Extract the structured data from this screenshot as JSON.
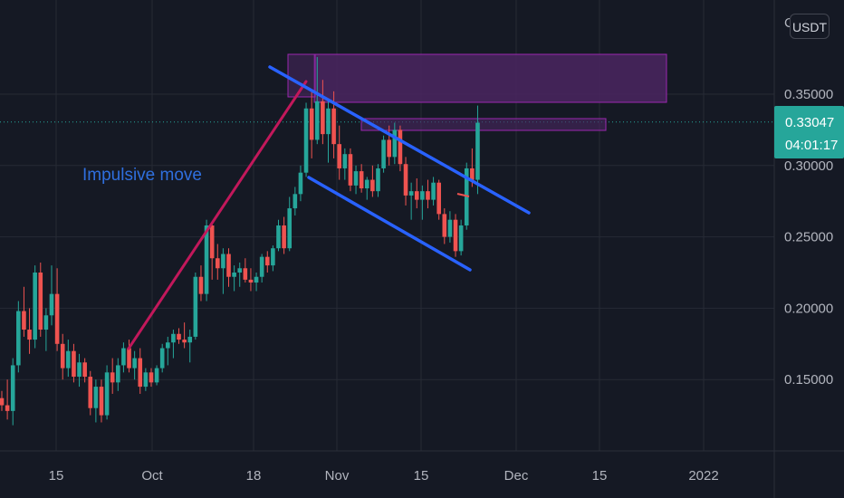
{
  "instrument": {
    "currency_button": "USDT",
    "top_cut_label": "C"
  },
  "chart_data": {
    "type": "candlestick",
    "title": "",
    "price_axis": {
      "ylim": [
        0.1,
        0.38
      ],
      "ticks": [
        "0.35000",
        "0.30000",
        "0.25000",
        "0.20000",
        "0.15000"
      ]
    },
    "time_axis": {
      "tick_labels": [
        "15",
        "Oct",
        "18",
        "Nov",
        "15",
        "Dec",
        "15",
        "2022"
      ]
    },
    "current_price": {
      "value": "0.33047",
      "countdown": "04:01:17",
      "level": 0.33047
    },
    "annotations": [
      {
        "text": "Impulsive move"
      }
    ],
    "colors": {
      "up": "#26a69a",
      "down": "#ef5350",
      "background": "#151924",
      "trendline": "#2962ff",
      "impulse": "#c2185b",
      "zone_fill": "#4a2660",
      "zone_border": "#9c27b0"
    },
    "candles": [
      [
        0.137,
        0.142,
        0.128,
        0.132
      ],
      [
        0.132,
        0.15,
        0.122,
        0.128
      ],
      [
        0.128,
        0.165,
        0.118,
        0.16
      ],
      [
        0.16,
        0.205,
        0.155,
        0.198
      ],
      [
        0.198,
        0.215,
        0.18,
        0.185
      ],
      [
        0.185,
        0.2,
        0.168,
        0.178
      ],
      [
        0.178,
        0.23,
        0.172,
        0.225
      ],
      [
        0.225,
        0.232,
        0.18,
        0.185
      ],
      [
        0.185,
        0.2,
        0.17,
        0.195
      ],
      [
        0.195,
        0.23,
        0.188,
        0.21
      ],
      [
        0.21,
        0.228,
        0.17,
        0.175
      ],
      [
        0.175,
        0.182,
        0.15,
        0.158
      ],
      [
        0.158,
        0.178,
        0.152,
        0.17
      ],
      [
        0.17,
        0.175,
        0.148,
        0.152
      ],
      [
        0.152,
        0.168,
        0.145,
        0.162
      ],
      [
        0.162,
        0.165,
        0.148,
        0.152
      ],
      [
        0.152,
        0.156,
        0.125,
        0.13
      ],
      [
        0.13,
        0.15,
        0.12,
        0.145
      ],
      [
        0.145,
        0.15,
        0.12,
        0.125
      ],
      [
        0.125,
        0.16,
        0.122,
        0.155
      ],
      [
        0.155,
        0.165,
        0.14,
        0.148
      ],
      [
        0.148,
        0.165,
        0.142,
        0.16
      ],
      [
        0.16,
        0.176,
        0.155,
        0.172
      ],
      [
        0.172,
        0.178,
        0.155,
        0.158
      ],
      [
        0.158,
        0.17,
        0.15,
        0.165
      ],
      [
        0.165,
        0.172,
        0.14,
        0.145
      ],
      [
        0.145,
        0.158,
        0.142,
        0.155
      ],
      [
        0.155,
        0.158,
        0.145,
        0.148
      ],
      [
        0.148,
        0.16,
        0.146,
        0.158
      ],
      [
        0.158,
        0.175,
        0.155,
        0.172
      ],
      [
        0.172,
        0.18,
        0.16,
        0.176
      ],
      [
        0.176,
        0.185,
        0.165,
        0.182
      ],
      [
        0.182,
        0.186,
        0.175,
        0.178
      ],
      [
        0.178,
        0.19,
        0.172,
        0.176
      ],
      [
        0.176,
        0.185,
        0.162,
        0.18
      ],
      [
        0.18,
        0.225,
        0.178,
        0.222
      ],
      [
        0.222,
        0.23,
        0.205,
        0.21
      ],
      [
        0.21,
        0.262,
        0.205,
        0.258
      ],
      [
        0.258,
        0.26,
        0.22,
        0.235
      ],
      [
        0.235,
        0.245,
        0.22,
        0.228
      ],
      [
        0.228,
        0.242,
        0.21,
        0.238
      ],
      [
        0.238,
        0.242,
        0.215,
        0.222
      ],
      [
        0.222,
        0.23,
        0.212,
        0.225
      ],
      [
        0.225,
        0.232,
        0.215,
        0.228
      ],
      [
        0.228,
        0.235,
        0.218,
        0.22
      ],
      [
        0.22,
        0.228,
        0.212,
        0.218
      ],
      [
        0.218,
        0.225,
        0.212,
        0.222
      ],
      [
        0.222,
        0.238,
        0.218,
        0.236
      ],
      [
        0.236,
        0.24,
        0.225,
        0.23
      ],
      [
        0.23,
        0.244,
        0.226,
        0.242
      ],
      [
        0.242,
        0.262,
        0.24,
        0.258
      ],
      [
        0.258,
        0.264,
        0.238,
        0.242
      ],
      [
        0.242,
        0.278,
        0.24,
        0.27
      ],
      [
        0.27,
        0.285,
        0.265,
        0.28
      ],
      [
        0.28,
        0.3,
        0.275,
        0.295
      ],
      [
        0.295,
        0.344,
        0.292,
        0.34
      ],
      [
        0.34,
        0.352,
        0.305,
        0.318
      ],
      [
        0.318,
        0.376,
        0.315,
        0.345
      ],
      [
        0.345,
        0.36,
        0.315,
        0.322
      ],
      [
        0.322,
        0.346,
        0.302,
        0.34
      ],
      [
        0.34,
        0.352,
        0.305,
        0.315
      ],
      [
        0.315,
        0.328,
        0.29,
        0.298
      ],
      [
        0.298,
        0.312,
        0.29,
        0.308
      ],
      [
        0.308,
        0.312,
        0.282,
        0.286
      ],
      [
        0.286,
        0.3,
        0.28,
        0.296
      ],
      [
        0.296,
        0.301,
        0.281,
        0.284
      ],
      [
        0.284,
        0.292,
        0.276,
        0.29
      ],
      [
        0.29,
        0.3,
        0.278,
        0.282
      ],
      [
        0.282,
        0.301,
        0.278,
        0.298
      ],
      [
        0.298,
        0.321,
        0.295,
        0.318
      ],
      [
        0.318,
        0.328,
        0.3,
        0.306
      ],
      [
        0.306,
        0.33,
        0.301,
        0.325
      ],
      [
        0.325,
        0.328,
        0.296,
        0.301
      ],
      [
        0.301,
        0.306,
        0.272,
        0.279
      ],
      [
        0.279,
        0.288,
        0.262,
        0.282
      ],
      [
        0.282,
        0.291,
        0.27,
        0.276
      ],
      [
        0.276,
        0.286,
        0.262,
        0.282
      ],
      [
        0.282,
        0.29,
        0.27,
        0.276
      ],
      [
        0.276,
        0.292,
        0.272,
        0.288
      ],
      [
        0.288,
        0.29,
        0.262,
        0.266
      ],
      [
        0.266,
        0.27,
        0.245,
        0.25
      ],
      [
        0.25,
        0.268,
        0.246,
        0.262
      ],
      [
        0.262,
        0.266,
        0.236,
        0.24
      ],
      [
        0.24,
        0.262,
        0.237,
        0.258
      ],
      [
        0.258,
        0.302,
        0.255,
        0.298
      ],
      [
        0.298,
        0.312,
        0.285,
        0.29
      ],
      [
        0.29,
        0.342,
        0.28,
        0.33
      ]
    ]
  }
}
